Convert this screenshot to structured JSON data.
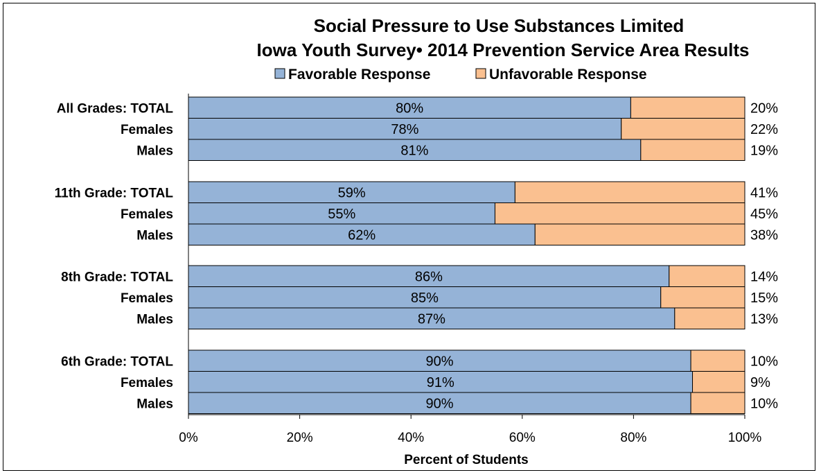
{
  "chart_data": {
    "type": "bar",
    "orientation": "horizontal",
    "stacked": true,
    "title": "Social Pressure to Use Substances Limited",
    "subtitle": "Iowa Youth Survey• 2014 Prevention Service Area Results",
    "xlabel": "Percent of Students",
    "ylabel": "",
    "xlim": [
      0,
      100
    ],
    "x_ticks": [
      "0%",
      "20%",
      "40%",
      "60%",
      "80%",
      "100%"
    ],
    "legend_position": "top",
    "groups": [
      {
        "categories": [
          "All Grades:  TOTAL",
          "Females",
          "Males"
        ]
      },
      {
        "categories": [
          "11th Grade:  TOTAL",
          "Females",
          "Males"
        ]
      },
      {
        "categories": [
          "8th Grade:  TOTAL",
          "Females",
          "Males"
        ]
      },
      {
        "categories": [
          "6th Grade:  TOTAL",
          "Females",
          "Males"
        ]
      }
    ],
    "categories": [
      "All Grades:  TOTAL",
      "Females",
      "Males",
      "11th Grade:  TOTAL",
      "Females",
      "Males",
      "8th Grade:  TOTAL",
      "Females",
      "Males",
      "6th Grade:  TOTAL",
      "Females",
      "Males"
    ],
    "series": [
      {
        "name": "Favorable Response",
        "color": "#95b3d7",
        "values": [
          79.5,
          77.8,
          81.3,
          58.7,
          55.1,
          62.3,
          86.4,
          84.9,
          87.4,
          90.3,
          90.6,
          90.3
        ],
        "labels": [
          "80%",
          "78%",
          "81%",
          "59%",
          "55%",
          "62%",
          "86%",
          "85%",
          "87%",
          "90%",
          "91%",
          "90%"
        ]
      },
      {
        "name": "Unfavorable Response",
        "color": "#fac090",
        "values": [
          20.5,
          22.2,
          18.7,
          41.3,
          44.9,
          37.7,
          13.6,
          15.1,
          12.6,
          9.7,
          9.4,
          9.7
        ],
        "labels": [
          "20%",
          "22%",
          "19%",
          "41%",
          "45%",
          "38%",
          "14%",
          "15%",
          "13%",
          "10%",
          "9%",
          "10%"
        ]
      }
    ]
  }
}
